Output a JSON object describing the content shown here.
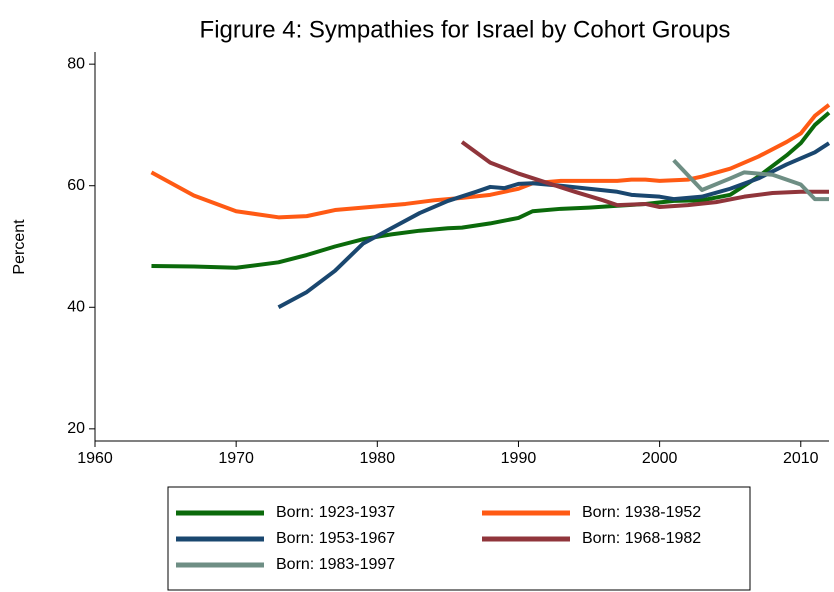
{
  "chart_data": {
    "type": "line",
    "title": "Figrure 4: Sympathies for Israel by Cohort Groups",
    "y_label": "Percent",
    "xlim": [
      1960,
      2012
    ],
    "ylim": [
      18,
      82
    ],
    "xticks": [
      1960,
      1970,
      1980,
      1990,
      2000,
      2010
    ],
    "yticks": [
      20,
      40,
      60,
      80
    ],
    "grid": false,
    "legend_position": "bottom",
    "series": [
      {
        "name": "Born: 1923-1937",
        "color": "#0b6a0b",
        "x": [
          1964,
          1967,
          1970,
          1973,
          1975,
          1977,
          1979,
          1981,
          1983,
          1985,
          1986,
          1988,
          1990,
          1991,
          1993,
          1995,
          1997,
          1999,
          2001,
          2003,
          2005,
          2007,
          2009,
          2010,
          2011,
          2012
        ],
        "values": [
          46.8,
          46.7,
          46.5,
          47.4,
          48.6,
          50,
          51.2,
          52,
          52.6,
          53,
          53.1,
          53.8,
          54.7,
          55.8,
          56.2,
          56.4,
          56.7,
          57,
          57.5,
          57.6,
          58.5,
          61.5,
          65,
          67,
          70,
          72
        ]
      },
      {
        "name": "Born: 1938-1952",
        "color": "#ff5a14",
        "x": [
          1964,
          1967,
          1970,
          1973,
          1975,
          1977,
          1980,
          1982,
          1984,
          1986,
          1988,
          1990,
          1991,
          1993,
          1995,
          1997,
          1998,
          1999,
          2000,
          2002,
          2003,
          2005,
          2007,
          2009,
          2010,
          2011,
          2012
        ],
        "values": [
          62.2,
          58.4,
          55.8,
          54.8,
          55,
          56,
          56.6,
          57,
          57.6,
          58,
          58.5,
          59.5,
          60.4,
          60.8,
          60.8,
          60.8,
          61,
          61,
          60.8,
          61,
          61.5,
          62.8,
          64.8,
          67.2,
          68.6,
          71.5,
          73.3
        ]
      },
      {
        "name": "Born: 1953-1967",
        "color": "#1a476f",
        "x": [
          1973,
          1975,
          1977,
          1979,
          1981,
          1983,
          1985,
          1987,
          1988,
          1989,
          1990,
          1991,
          1993,
          1995,
          1997,
          1998,
          2000,
          2001,
          2003,
          2005,
          2007,
          2009,
          2011,
          2012
        ],
        "values": [
          40,
          42.5,
          46,
          50.5,
          53,
          55.5,
          57.5,
          59,
          59.8,
          59.6,
          60.3,
          60.4,
          60,
          59.5,
          59,
          58.5,
          58.2,
          57.8,
          58.2,
          59.5,
          61.2,
          63.5,
          65.5,
          67
        ]
      },
      {
        "name": "Born: 1968-1982",
        "color": "#90353b",
        "x": [
          1986,
          1988,
          1990,
          1992,
          1994,
          1996,
          1997,
          1999,
          2000,
          2002,
          2004,
          2006,
          2008,
          2010,
          2012
        ],
        "values": [
          67.2,
          63.8,
          62,
          60.5,
          59,
          57.6,
          56.8,
          57,
          56.5,
          56.8,
          57.3,
          58.2,
          58.8,
          59,
          59
        ]
      },
      {
        "name": "Born: 1983-1997",
        "color": "#6e8e84",
        "x": [
          2001,
          2003,
          2005,
          2006,
          2008,
          2009,
          2010,
          2011,
          2012
        ],
        "values": [
          64.2,
          59.3,
          61.2,
          62.2,
          61.8,
          61,
          60.2,
          57.8,
          57.8
        ]
      }
    ]
  }
}
